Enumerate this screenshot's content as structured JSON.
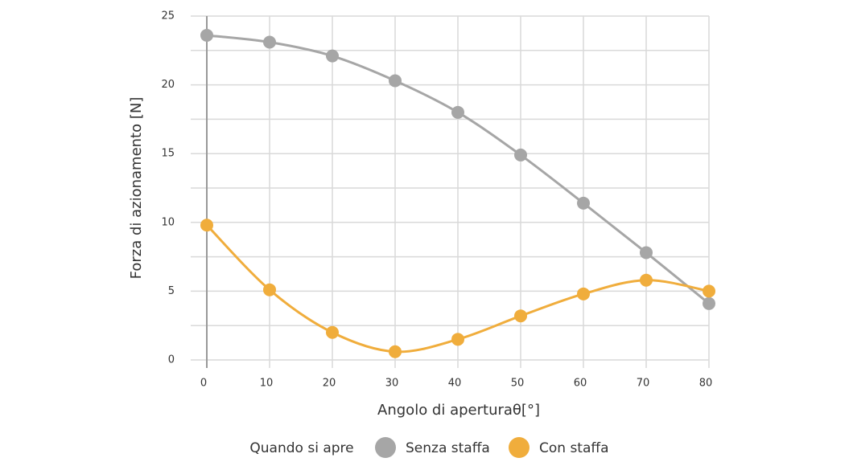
{
  "chart_data": {
    "type": "line",
    "x_label": "Angolo di aperturaθ[°]",
    "y_label": "Forza di azionamento [N]",
    "legend_title": "Quando si apre",
    "x": [
      0,
      10,
      20,
      30,
      40,
      50,
      60,
      70,
      80
    ],
    "series": [
      {
        "name": "Senza staffa",
        "color": "#a6a6a6",
        "values": [
          23.6,
          23.1,
          22.1,
          20.3,
          18.0,
          14.9,
          11.4,
          7.8,
          4.1
        ]
      },
      {
        "name": "Con staffa",
        "color": "#f0ad3c",
        "values": [
          9.8,
          5.1,
          2.0,
          0.6,
          1.5,
          3.2,
          4.8,
          5.8,
          5.0
        ]
      }
    ],
    "xlim": [
      0,
      80
    ],
    "xticks": [
      0,
      10,
      20,
      30,
      40,
      50,
      60,
      70,
      80
    ],
    "ylim": [
      0,
      25
    ],
    "yticks": [
      0,
      5,
      10,
      15,
      20,
      25
    ],
    "yminorticks": [
      2.5,
      7.5,
      12.5,
      17.5,
      22.5
    ],
    "grid": true,
    "smooth": true,
    "legend": "bottom"
  }
}
